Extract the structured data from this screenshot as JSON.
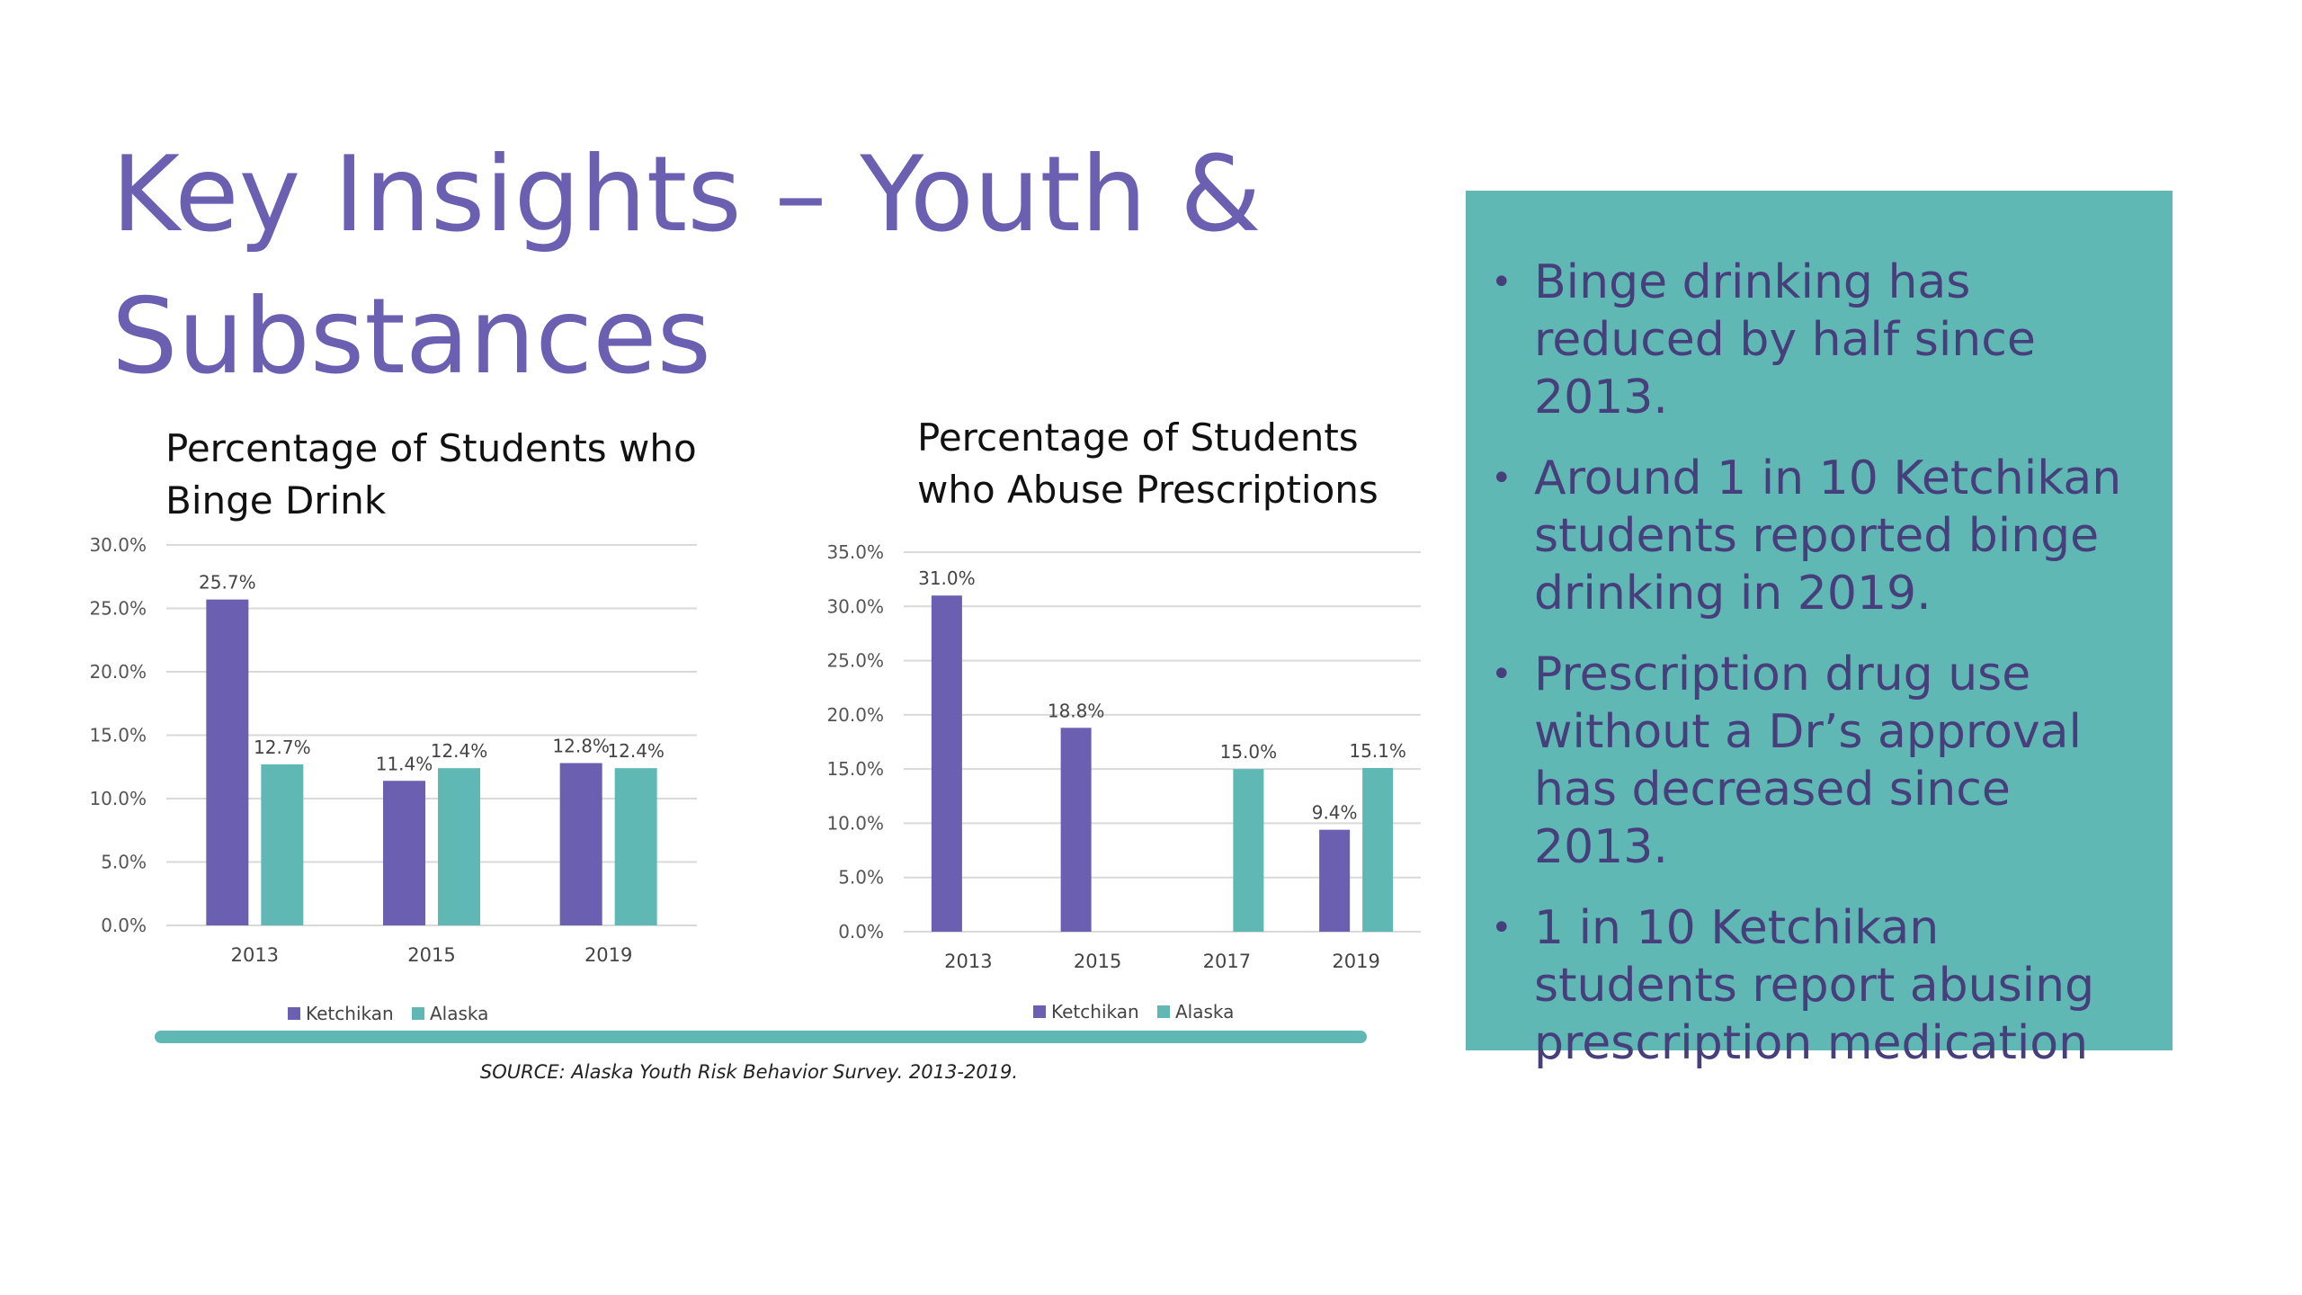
{
  "slide": {
    "title_line1": "Key Insights – Youth &",
    "title_line2": "Substances",
    "source": "SOURCE: Alaska Youth Risk Behavior Survey. 2013-2019."
  },
  "colors": {
    "ketchikan": "#6a5fb0",
    "alaska": "#5fb8b4",
    "panel": "#5fb8b4",
    "title": "#6a5fb0"
  },
  "insights": [
    "Binge drinking has reduced by half since 2013.",
    "Around 1 in 10 Ketchikan students reported binge drinking in 2019.",
    "Prescription drug use without a Dr’s approval has decreased since 2013.",
    "1 in 10 Ketchikan students report abusing prescription medication"
  ],
  "chart_data": [
    {
      "type": "bar",
      "title_line1": "Percentage of Students who",
      "title_line2": "Binge Drink",
      "categories": [
        "2013",
        "2015",
        "2019"
      ],
      "series": [
        {
          "name": "Ketchikan",
          "values": [
            25.7,
            11.4,
            12.8
          ],
          "labels": [
            "25.7%",
            "11.4%",
            "12.8%"
          ]
        },
        {
          "name": "Alaska",
          "values": [
            12.7,
            12.4,
            12.4
          ],
          "labels": [
            "12.7%",
            "12.4%",
            "12.4%"
          ]
        }
      ],
      "ylim": [
        0,
        30
      ],
      "yticks": [
        "0.0%",
        "5.0%",
        "10.0%",
        "15.0%",
        "20.0%",
        "25.0%",
        "30.0%"
      ],
      "grid": true,
      "legend": "bottom"
    },
    {
      "type": "bar",
      "title_line1": "Percentage of Students",
      "title_line2": "who Abuse Prescriptions",
      "categories": [
        "2013",
        "2015",
        "2017",
        "2019"
      ],
      "series": [
        {
          "name": "Ketchikan",
          "values": [
            31.0,
            18.8,
            null,
            9.4
          ],
          "labels": [
            "31.0%",
            "18.8%",
            "",
            "9.4%"
          ]
        },
        {
          "name": "Alaska",
          "values": [
            null,
            null,
            15.0,
            15.1
          ],
          "labels": [
            "",
            "",
            "15.0%",
            "15.1%"
          ]
        }
      ],
      "ylim": [
        0,
        35
      ],
      "yticks": [
        "0.0%",
        "5.0%",
        "10.0%",
        "15.0%",
        "20.0%",
        "25.0%",
        "30.0%",
        "35.0%"
      ],
      "grid": true,
      "legend": "bottom"
    }
  ]
}
